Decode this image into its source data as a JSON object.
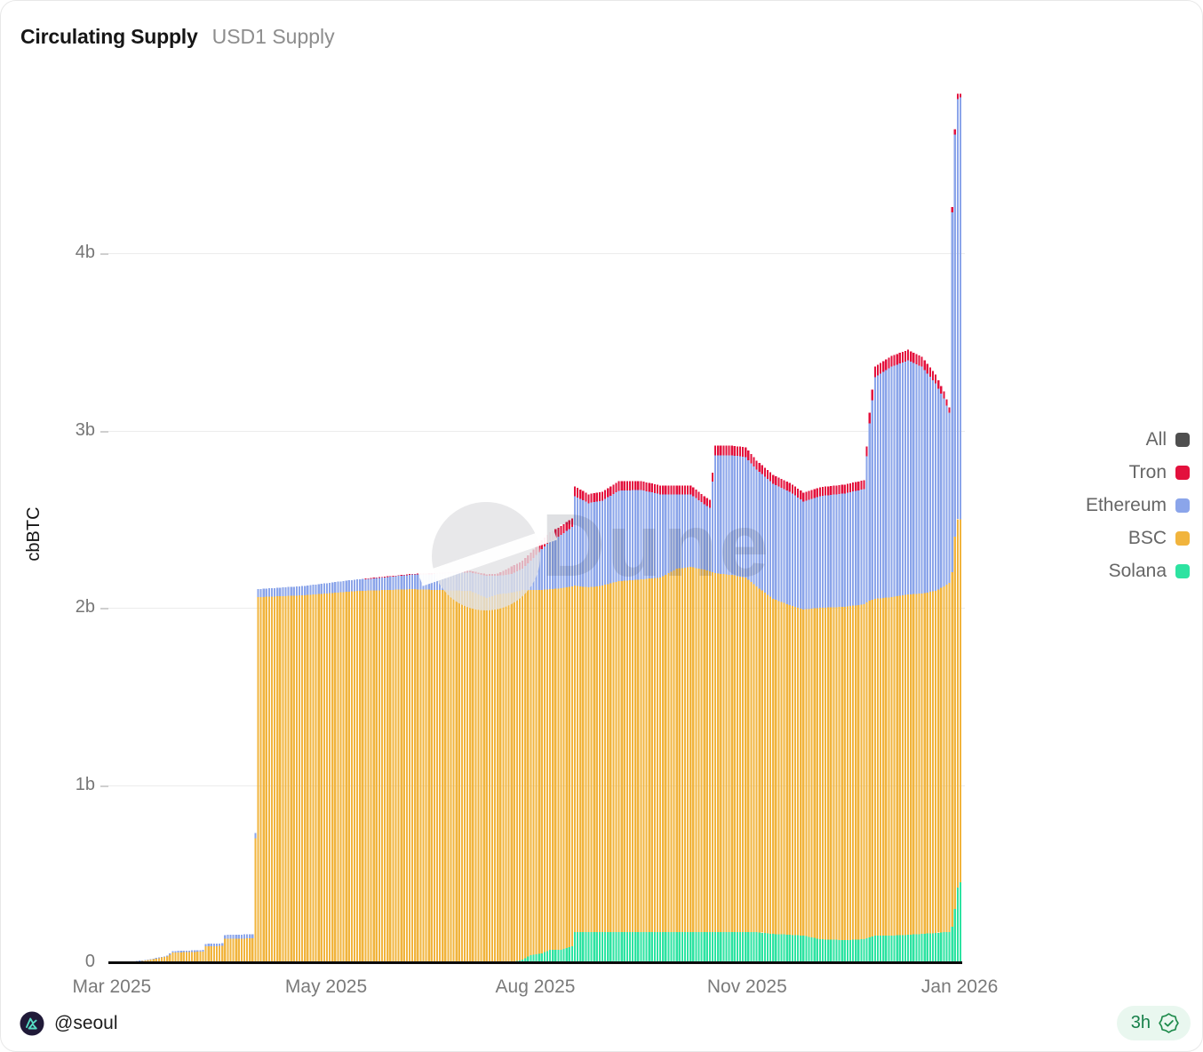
{
  "header": {
    "title": "Circulating Supply",
    "subtitle": "USD1 Supply"
  },
  "watermark": {
    "text": "Dune"
  },
  "footer": {
    "author": "@seoul",
    "badge_time": "3h"
  },
  "colors": {
    "All": "#4f4f4f",
    "Tron": "#e3113d",
    "Ethereum": "#8ba5ea",
    "BSC": "#f1b43d",
    "Solana": "#2de3a1",
    "grid": "#ececec",
    "axis": "#0b0b0b",
    "badge_green": "#17804a",
    "badge_bg": "#e9f7ef"
  },
  "legend": {
    "items": [
      {
        "label": "All",
        "color": "#4f4f4f"
      },
      {
        "label": "Tron",
        "color": "#e3113d"
      },
      {
        "label": "Ethereum",
        "color": "#8ba5ea"
      },
      {
        "label": "BSC",
        "color": "#f1b43d"
      },
      {
        "label": "Solana",
        "color": "#2de3a1"
      }
    ]
  },
  "chart_data": {
    "type": "bar",
    "stacked": true,
    "title": "Circulating Supply — USD1 Supply",
    "xlabel": "",
    "ylabel": "cbBTC",
    "unit": "billions",
    "ylim": [
      0,
      4.95
    ],
    "grid": "horizontal",
    "legend_position": "right",
    "y_ticks": [
      {
        "label": "0",
        "value": 0
      },
      {
        "label": "1b",
        "value": 1
      },
      {
        "label": "2b",
        "value": 2
      },
      {
        "label": "3b",
        "value": 3
      },
      {
        "label": "4b",
        "value": 4
      }
    ],
    "x_ticks": [
      {
        "label": "Mar 2025",
        "pos": 0.004
      },
      {
        "label": "May 2025",
        "pos": 0.255
      },
      {
        "label": "Aug 2025",
        "pos": 0.5
      },
      {
        "label": "Nov 2025",
        "pos": 0.748
      },
      {
        "label": "Jan 2026",
        "pos": 0.997
      }
    ],
    "num_bars": 310,
    "series_bottom_to_top": [
      "Solana",
      "BSC",
      "Ethereum",
      "Tron"
    ],
    "keyframes_note": "daily stacked supply in billions; bars linearly interpolated between keyframes [Solana,BSC,Ethereum,Tron]",
    "keyframes": [
      {
        "i": 0,
        "v": [
          0,
          0,
          0,
          0
        ]
      },
      {
        "i": 8,
        "v": [
          0,
          0.004,
          0,
          0
        ]
      },
      {
        "i": 12,
        "v": [
          0,
          0.009,
          0.002,
          0
        ]
      },
      {
        "i": 16,
        "v": [
          0,
          0.018,
          0.003,
          0
        ]
      },
      {
        "i": 21,
        "v": [
          0,
          0.032,
          0.005,
          0
        ]
      },
      {
        "i": 23,
        "v": [
          0,
          0.055,
          0.008,
          0
        ]
      },
      {
        "i": 34,
        "v": [
          0,
          0.06,
          0.009,
          0
        ]
      },
      {
        "i": 35,
        "v": [
          0,
          0.09,
          0.014,
          0
        ]
      },
      {
        "i": 41,
        "v": [
          0,
          0.092,
          0.015,
          0
        ]
      },
      {
        "i": 42,
        "v": [
          0,
          0.132,
          0.022,
          0
        ]
      },
      {
        "i": 52,
        "v": [
          0,
          0.135,
          0.023,
          0
        ]
      },
      {
        "i": 53,
        "v": [
          0,
          0.7,
          0.03,
          0
        ]
      },
      {
        "i": 54,
        "v": [
          0,
          2.06,
          0.045,
          0
        ]
      },
      {
        "i": 70,
        "v": [
          0,
          2.07,
          0.052,
          0
        ]
      },
      {
        "i": 90,
        "v": [
          0,
          2.095,
          0.065,
          0
        ]
      },
      {
        "i": 110,
        "v": [
          0,
          2.105,
          0.082,
          0.004
        ]
      },
      {
        "i": 120,
        "v": [
          0,
          2.1,
          0.09,
          0.007
        ]
      },
      {
        "i": 131,
        "v": [
          0,
          2.095,
          0.105,
          0.009
        ]
      },
      {
        "i": 137,
        "v": [
          0,
          2.055,
          0.125,
          0.009
        ]
      },
      {
        "i": 141,
        "v": [
          0,
          2.075,
          0.105,
          0.012
        ]
      },
      {
        "i": 146,
        "v": [
          0,
          2.085,
          0.105,
          0.042
        ]
      },
      {
        "i": 150,
        "v": [
          0.015,
          2.085,
          0.12,
          0.045
        ]
      },
      {
        "i": 153,
        "v": [
          0.04,
          2.06,
          0.165,
          0.045
        ]
      },
      {
        "i": 157,
        "v": [
          0.05,
          2.05,
          0.23,
          0.05
        ]
      },
      {
        "i": 160,
        "v": [
          0.07,
          2.035,
          0.27,
          0.05
        ]
      },
      {
        "i": 164,
        "v": [
          0.07,
          2.04,
          0.3,
          0.05
        ]
      },
      {
        "i": 168,
        "v": [
          0.09,
          2.03,
          0.335,
          0.05
        ]
      },
      {
        "i": 169,
        "v": [
          0.17,
          1.955,
          0.505,
          0.055
        ]
      },
      {
        "i": 174,
        "v": [
          0.17,
          1.945,
          0.475,
          0.05
        ]
      },
      {
        "i": 179,
        "v": [
          0.17,
          1.955,
          0.48,
          0.05
        ]
      },
      {
        "i": 185,
        "v": [
          0.17,
          1.98,
          0.51,
          0.055
        ]
      },
      {
        "i": 193,
        "v": [
          0.17,
          1.99,
          0.505,
          0.05
        ]
      },
      {
        "i": 200,
        "v": [
          0.17,
          2.0,
          0.47,
          0.05
        ]
      },
      {
        "i": 206,
        "v": [
          0.17,
          2.05,
          0.42,
          0.05
        ]
      },
      {
        "i": 211,
        "v": [
          0.17,
          2.06,
          0.41,
          0.05
        ]
      },
      {
        "i": 216,
        "v": [
          0.17,
          2.045,
          0.37,
          0.045
        ]
      },
      {
        "i": 218,
        "v": [
          0.17,
          2.035,
          0.36,
          0.045
        ]
      },
      {
        "i": 220,
        "v": [
          0.17,
          2.025,
          0.665,
          0.055
        ]
      },
      {
        "i": 226,
        "v": [
          0.17,
          2.015,
          0.675,
          0.055
        ]
      },
      {
        "i": 231,
        "v": [
          0.17,
          2.0,
          0.68,
          0.055
        ]
      },
      {
        "i": 235,
        "v": [
          0.17,
          1.95,
          0.66,
          0.05
        ]
      },
      {
        "i": 241,
        "v": [
          0.16,
          1.89,
          0.65,
          0.05
        ]
      },
      {
        "i": 247,
        "v": [
          0.155,
          1.86,
          0.64,
          0.05
        ]
      },
      {
        "i": 252,
        "v": [
          0.15,
          1.84,
          0.61,
          0.05
        ]
      },
      {
        "i": 258,
        "v": [
          0.13,
          1.87,
          0.63,
          0.05
        ]
      },
      {
        "i": 267,
        "v": [
          0.125,
          1.88,
          0.64,
          0.05
        ]
      },
      {
        "i": 274,
        "v": [
          0.13,
          1.89,
          0.65,
          0.05
        ]
      },
      {
        "i": 276,
        "v": [
          0.14,
          1.9,
          1.0,
          0.06
        ]
      },
      {
        "i": 278,
        "v": [
          0.15,
          1.9,
          1.25,
          0.06
        ]
      },
      {
        "i": 284,
        "v": [
          0.15,
          1.91,
          1.3,
          0.06
        ]
      },
      {
        "i": 290,
        "v": [
          0.155,
          1.92,
          1.32,
          0.06
        ]
      },
      {
        "i": 295,
        "v": [
          0.16,
          1.92,
          1.28,
          0.055
        ]
      },
      {
        "i": 300,
        "v": [
          0.165,
          1.93,
          1.17,
          0.05
        ]
      },
      {
        "i": 303,
        "v": [
          0.17,
          1.95,
          1.06,
          0.04
        ]
      },
      {
        "i": 305,
        "v": [
          0.17,
          1.97,
          0.96,
          0.03
        ]
      },
      {
        "i": 306,
        "v": [
          0.2,
          2.0,
          2.03,
          0.03
        ]
      },
      {
        "i": 307,
        "v": [
          0.3,
          2.1,
          2.27,
          0.03
        ]
      },
      {
        "i": 308,
        "v": [
          0.42,
          2.08,
          2.37,
          0.03
        ]
      },
      {
        "i": 309,
        "v": [
          0.45,
          2.05,
          2.38,
          0.02
        ]
      }
    ]
  }
}
